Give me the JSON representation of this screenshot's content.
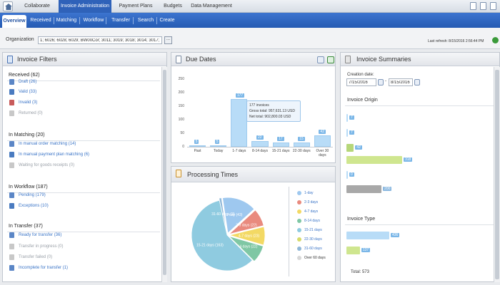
{
  "top_tabs": [
    "Collaborate",
    "Invoice Administration",
    "Payment Plans",
    "Budgets",
    "Data Management"
  ],
  "sub_tabs": [
    "Overview",
    "Received",
    "Matching",
    "Workflow",
    "Transfer",
    "Search",
    "Create"
  ],
  "org": {
    "label": "Organization",
    "value": "1; 6026; 6028; 6029; BW00Cor; 3011; 3019; 3018; 3014; 3017; 3016|",
    "button": "..."
  },
  "last_refresh": "Last refresh: 8/15/2016 2:56:44 PM",
  "filters": {
    "title": "Invoice Filters",
    "received": {
      "label": "Received (62)",
      "items": [
        "Draft (26)",
        "Valid (33)",
        "Invalid (3)",
        "Returned (0)"
      ]
    },
    "matching": {
      "label": "In Matching (20)",
      "items": [
        "In manual order matching (14)",
        "In manual payment plan matching (6)",
        "Waiting for goods receipts (0)"
      ]
    },
    "workflow": {
      "label": "In Workflow (187)",
      "items": [
        "Pending (179)",
        "Exceptions (10)"
      ]
    },
    "transfer": {
      "label": "In Transfer (37)",
      "items": [
        "Ready for transfer (36)",
        "Transfer in progress (0)",
        "Transfer failed (0)",
        "Incomplete for transfer (1)"
      ]
    }
  },
  "due_dates": {
    "title": "Due Dates",
    "tooltip": {
      "l1": "177 invoices",
      "l2": "Gross total: 957,631.13 USD",
      "l3": "Net total: 902,800.03 USD"
    }
  },
  "processing": {
    "title": "Processing Times"
  },
  "summaries": {
    "title": "Invoice Summaries",
    "creation_label": "Creation date:",
    "date_from": "7/15/2016",
    "date_dash": "-",
    "date_to": "8/15/2016",
    "origin_label": "Invoice Origin",
    "type_label": "Invoice Type",
    "total": "Total: 573"
  },
  "chart_data": [
    {
      "type": "bar",
      "title": "Due Dates",
      "categories": [
        "Past",
        "Today",
        "1-7 days",
        "8-14 days",
        "15-21 days",
        "22-30 days",
        "Over 30 days"
      ],
      "values": [
        5,
        5,
        177,
        22,
        17,
        15,
        42
      ],
      "ylim": [
        0,
        250
      ],
      "yticks": [
        0,
        50,
        100,
        150,
        200,
        250
      ],
      "grid": false,
      "color": "#b8dcf7"
    },
    {
      "type": "pie",
      "title": "Processing Times",
      "labels": [
        "1-day",
        "2-3 days",
        "4-7 days",
        "8-14 days",
        "15-21 days",
        "22-30 days",
        "31-60 days",
        "Over 60 days"
      ],
      "slice_labels": [
        "1 day (43)",
        "2-3 days (22)",
        "4-7 days (23)",
        "8-14 days (22)",
        "15-21 days (163)",
        "",
        "31-60 days (3)",
        ""
      ],
      "values": [
        43,
        22,
        23,
        22,
        163,
        0,
        3,
        0
      ],
      "colors": [
        "#9ec8ef",
        "#e98a7e",
        "#f3d964",
        "#7fc7a4",
        "#8fcbe0",
        "#d6db6a",
        "#8fb7d8",
        "#d7d7d7"
      ],
      "legend": "right"
    },
    {
      "type": "bar",
      "title": "Invoice Origin",
      "orientation": "horizontal",
      "values": [
        7,
        7,
        42,
        318,
        0,
        200
      ],
      "colors": [
        "#b8dcf7",
        "#b8dcf7",
        "#b6d77a",
        "#cfe68f",
        "#b8dcf7",
        "#a8a8a8"
      ]
    },
    {
      "type": "bar",
      "title": "Invoice Type",
      "orientation": "horizontal",
      "values": [
        436,
        137
      ],
      "colors": [
        "#b8dcf7",
        "#cfe68f"
      ]
    }
  ]
}
